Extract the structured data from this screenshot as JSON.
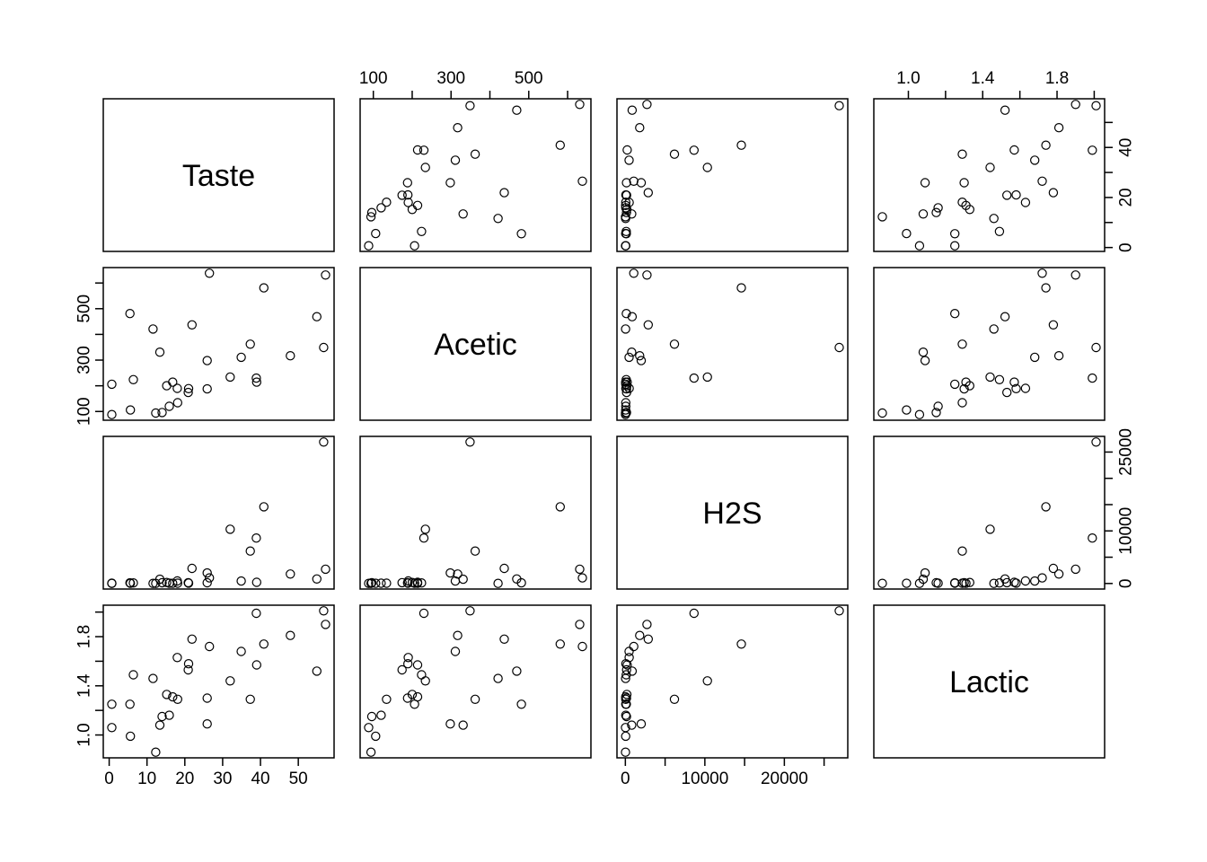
{
  "chart_data": {
    "type": "scatter",
    "subtype": "pairs_matrix",
    "title": "",
    "grid": false,
    "legend": false,
    "range_padding": 0.04,
    "point_color": "#000000",
    "background": "#ffffff",
    "variables": [
      {
        "name": "Taste",
        "axis": {
          "ticks": [
            0,
            10,
            20,
            30,
            40,
            50
          ],
          "labels_main": [
            [
              0,
              "0"
            ],
            [
              10,
              "10"
            ],
            [
              20,
              "20"
            ],
            [
              30,
              "30"
            ],
            [
              40,
              "40"
            ],
            [
              50,
              "50"
            ]
          ],
          "labels_side": [
            [
              0,
              "0"
            ],
            [
              20,
              "20"
            ],
            [
              40,
              "40"
            ]
          ],
          "horizontal_side": "bottom",
          "vertical_side": "right"
        }
      },
      {
        "name": "Acetic",
        "axis": {
          "ticks": [
            100,
            200,
            300,
            400,
            500,
            600
          ],
          "labels_main": [
            [
              100,
              "100"
            ],
            [
              300,
              "300"
            ],
            [
              500,
              "500"
            ]
          ],
          "labels_side": [
            [
              100,
              "100"
            ],
            [
              300,
              "300"
            ],
            [
              500,
              "500"
            ]
          ],
          "horizontal_side": "top",
          "vertical_side": "left"
        }
      },
      {
        "name": "H2S",
        "axis": {
          "ticks": [
            0,
            5000,
            10000,
            15000,
            20000,
            25000
          ],
          "labels_main": [
            [
              0,
              "0"
            ],
            [
              10000,
              "10000"
            ],
            [
              20000,
              "20000"
            ]
          ],
          "labels_side": [
            [
              0,
              "0"
            ],
            [
              10000,
              "10000"
            ],
            [
              25000,
              "25000"
            ]
          ],
          "horizontal_side": "bottom",
          "vertical_side": "right"
        }
      },
      {
        "name": "Lactic",
        "axis": {
          "ticks": [
            1.0,
            1.2,
            1.4,
            1.6,
            1.8,
            2.0
          ],
          "labels_main": [
            [
              1.0,
              "1.0"
            ],
            [
              1.4,
              "1.4"
            ],
            [
              1.8,
              "1.8"
            ]
          ],
          "labels_side": [
            [
              1.0,
              "1.0"
            ],
            [
              1.4,
              "1.4"
            ],
            [
              1.8,
              "1.8"
            ]
          ],
          "horizontal_side": "top",
          "vertical_side": "left"
        }
      }
    ],
    "observations": [
      [
        12.3,
        94,
        23,
        0.86
      ],
      [
        20.9,
        174,
        155,
        1.53
      ],
      [
        39.0,
        214,
        230,
        1.57
      ],
      [
        47.9,
        317,
        1800,
        1.81
      ],
      [
        5.6,
        106,
        45,
        0.99
      ],
      [
        25.9,
        298,
        2000,
        1.09
      ],
      [
        37.3,
        362,
        6172,
        1.29
      ],
      [
        21.9,
        437,
        2881,
        1.78
      ],
      [
        18.1,
        134,
        47,
        1.29
      ],
      [
        21.0,
        189,
        65,
        1.58
      ],
      [
        34.9,
        311,
        465,
        1.68
      ],
      [
        57.2,
        631,
        2721,
        1.9
      ],
      [
        0.7,
        88,
        20,
        1.06
      ],
      [
        25.9,
        188,
        140,
        1.3
      ],
      [
        54.9,
        469,
        856,
        1.52
      ],
      [
        40.9,
        581,
        14589,
        1.74
      ],
      [
        15.9,
        120,
        50,
        1.16
      ],
      [
        6.4,
        224,
        110,
        1.49
      ],
      [
        18.0,
        190,
        480,
        1.63
      ],
      [
        38.9,
        230,
        8639,
        1.99
      ],
      [
        14.0,
        96,
        141,
        1.15
      ],
      [
        15.2,
        200,
        185,
        1.33
      ],
      [
        32.0,
        234,
        10321,
        1.44
      ],
      [
        56.7,
        349,
        26903,
        2.01
      ],
      [
        16.8,
        214,
        39,
        1.31
      ],
      [
        11.6,
        421,
        25,
        1.46
      ],
      [
        26.5,
        638,
        1056,
        1.72
      ],
      [
        0.7,
        206,
        50,
        1.25
      ],
      [
        13.4,
        331,
        800,
        1.08
      ],
      [
        5.5,
        481,
        120,
        1.25
      ]
    ]
  }
}
